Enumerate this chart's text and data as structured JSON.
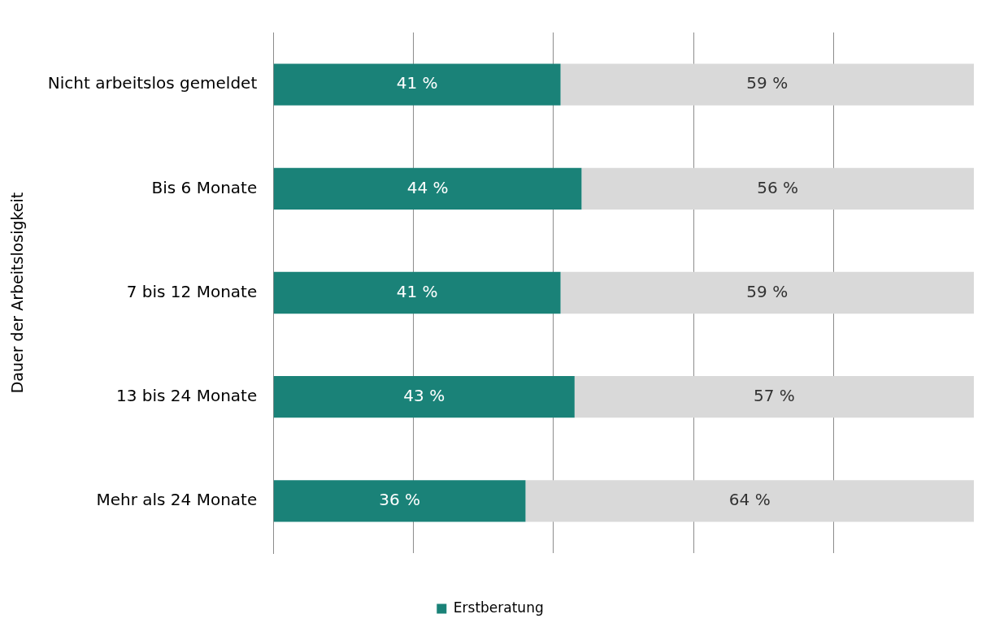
{
  "chart_data": {
    "type": "bar",
    "orientation": "horizontal",
    "stacked": true,
    "categories": [
      "Nicht arbeitslos gemeldet",
      "Bis 6 Monate",
      "7 bis 12 Monate",
      "13 bis 24 Monate",
      "Mehr als 24 Monate"
    ],
    "series": [
      {
        "name": "Erstberatung",
        "color": "#1a8278",
        "values": [
          41,
          44,
          41,
          43,
          36
        ],
        "value_labels": [
          "41 %",
          "44 %",
          "41 %",
          "43 %",
          "36 %"
        ]
      },
      {
        "color": "#d9d9d9",
        "values": [
          59,
          56,
          59,
          57,
          64
        ],
        "value_labels": [
          "59 %",
          "56 %",
          "59 %",
          "57 %",
          "64 %"
        ]
      }
    ],
    "xlim": [
      0,
      100
    ],
    "xticks": [
      {
        "value": 0,
        "label": null
      },
      {
        "value": 20,
        "label": null
      },
      {
        "value": 40,
        "label": null
      },
      {
        "value": 60,
        "label": null
      },
      {
        "value": 80,
        "label": null
      }
    ],
    "ylabel": "Dauer der Arbeitslosigkeit",
    "grid": "x",
    "legend": "bottom",
    "tick_labels": "y"
  }
}
